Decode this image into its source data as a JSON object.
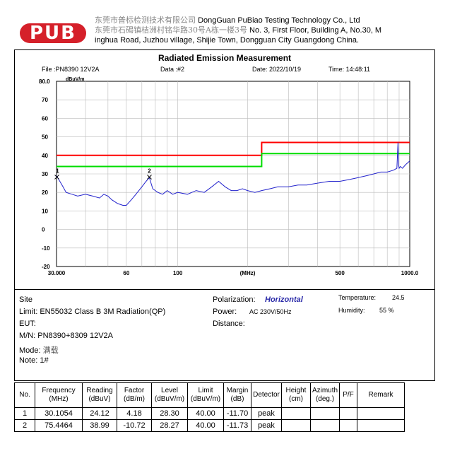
{
  "company": {
    "logo_text": "PUB",
    "cn_name": "东莞市普标检测技术有限公司",
    "en_name": "DongGuan PuBiao Testing Technology Co., Ltd",
    "cn_address": "东莞市石碣镇桔洲村铭华路30号A栋一楼3号",
    "en_address_1": "No. 3, First Floor, Building A, No.30, M",
    "en_address_2": "inghua Road, Juzhou village, Shijie Town, Dongguan City Guangdong China."
  },
  "header": {
    "file": "File :PN8390 12V2A",
    "data": "Data :#2",
    "date": "Date: 2022/10/19",
    "time": "Time: 14:48:11"
  },
  "chart_data": {
    "type": "line",
    "title": "Radiated Emission Measurement",
    "ylabel": "dBuV/m",
    "xlabel": "(MHz)",
    "x_scale": "log",
    "xlim": [
      30,
      1000
    ],
    "ylim": [
      -20,
      80
    ],
    "y_ticks": [
      "80.0",
      "70",
      "60",
      "50",
      "40",
      "30",
      "20",
      "10",
      "0",
      "-10",
      "-20"
    ],
    "y_tick_values": [
      80,
      70,
      60,
      50,
      40,
      30,
      20,
      10,
      0,
      -10,
      -20
    ],
    "x_ticks": [
      "30.000",
      "60",
      "100",
      "(MHz)",
      "500",
      "1000.0"
    ],
    "x_tick_values": [
      30,
      60,
      100,
      200,
      500,
      1000
    ],
    "grid": true,
    "series": [
      {
        "color": "#ff0000",
        "x": [
          30,
          230,
          230,
          1000
        ],
        "y": [
          40,
          40,
          47,
          47
        ]
      },
      {
        "color": "#00dd00",
        "x": [
          30,
          230,
          230,
          1000
        ],
        "y": [
          34,
          34,
          41,
          41
        ]
      },
      {
        "color": "#2222cc",
        "x": [
          30,
          31,
          32,
          33,
          35,
          37,
          40,
          43,
          46,
          48,
          50,
          52,
          55,
          58,
          60,
          63,
          66,
          70,
          73,
          75.4,
          78,
          82,
          86,
          90,
          95,
          100,
          110,
          120,
          130,
          140,
          150,
          160,
          170,
          180,
          190,
          200,
          215,
          230,
          250,
          270,
          300,
          330,
          360,
          400,
          450,
          500,
          550,
          600,
          650,
          700,
          750,
          800,
          850,
          880,
          890,
          895,
          900,
          910,
          930,
          960,
          1000
        ],
        "y": [
          29,
          26,
          23,
          20,
          19,
          18,
          19,
          18,
          17,
          19,
          18,
          16,
          14,
          13,
          13,
          16,
          19,
          23,
          26,
          28,
          22,
          20,
          19,
          21,
          19,
          20,
          19,
          21,
          20,
          23,
          26,
          23,
          21,
          21,
          22,
          21,
          20,
          21,
          22,
          23,
          23,
          24,
          24,
          25,
          26,
          26,
          27,
          28,
          29,
          30,
          31,
          31,
          32,
          33,
          47,
          35,
          33,
          34,
          33,
          35,
          37
        ]
      }
    ],
    "markers": [
      {
        "label": "1",
        "x": 30.1054,
        "y": 28.3
      },
      {
        "label": "2",
        "x": 75.4464,
        "y": 28.27
      }
    ]
  },
  "info": {
    "site": "Site",
    "limit": "Limit: EN55032 Class B 3M Radiation(QP)",
    "eut": "EUT:",
    "mn": "M/N:  PN8390+8309 12V2A",
    "mode_label": "Mode: ",
    "mode_value": "满载",
    "note": "Note:  1#",
    "polarization_label": "Polarization:",
    "polarization_value": "Horizontal",
    "power_label": "Power:",
    "power_value": "AC 230V/50Hz",
    "distance": "Distance:",
    "temperature_label": "Temperature:",
    "temperature_value": "24.5",
    "humidity_label": "Humidity:",
    "humidity_value": "55 %"
  },
  "table": {
    "headers": [
      "No.",
      "Frequency\n(MHz)",
      "Reading\n(dBuV)",
      "Factor\n(dB/m)",
      "Level\n(dBuV/m)",
      "Limit\n(dBuV/m)",
      "Margin\n(dB)",
      "Detector",
      "Height\n(cm)",
      "Azimuth\n(deg.)",
      "P/F",
      "Remark"
    ],
    "rows": [
      [
        "1",
        "30.1054",
        "24.12",
        "4.18",
        "28.30",
        "40.00",
        "-11.70",
        "peak",
        "",
        "",
        "",
        ""
      ],
      [
        "2",
        "75.4464",
        "38.99",
        "-10.72",
        "28.27",
        "40.00",
        "-11.73",
        "peak",
        "",
        "",
        "",
        ""
      ]
    ]
  }
}
